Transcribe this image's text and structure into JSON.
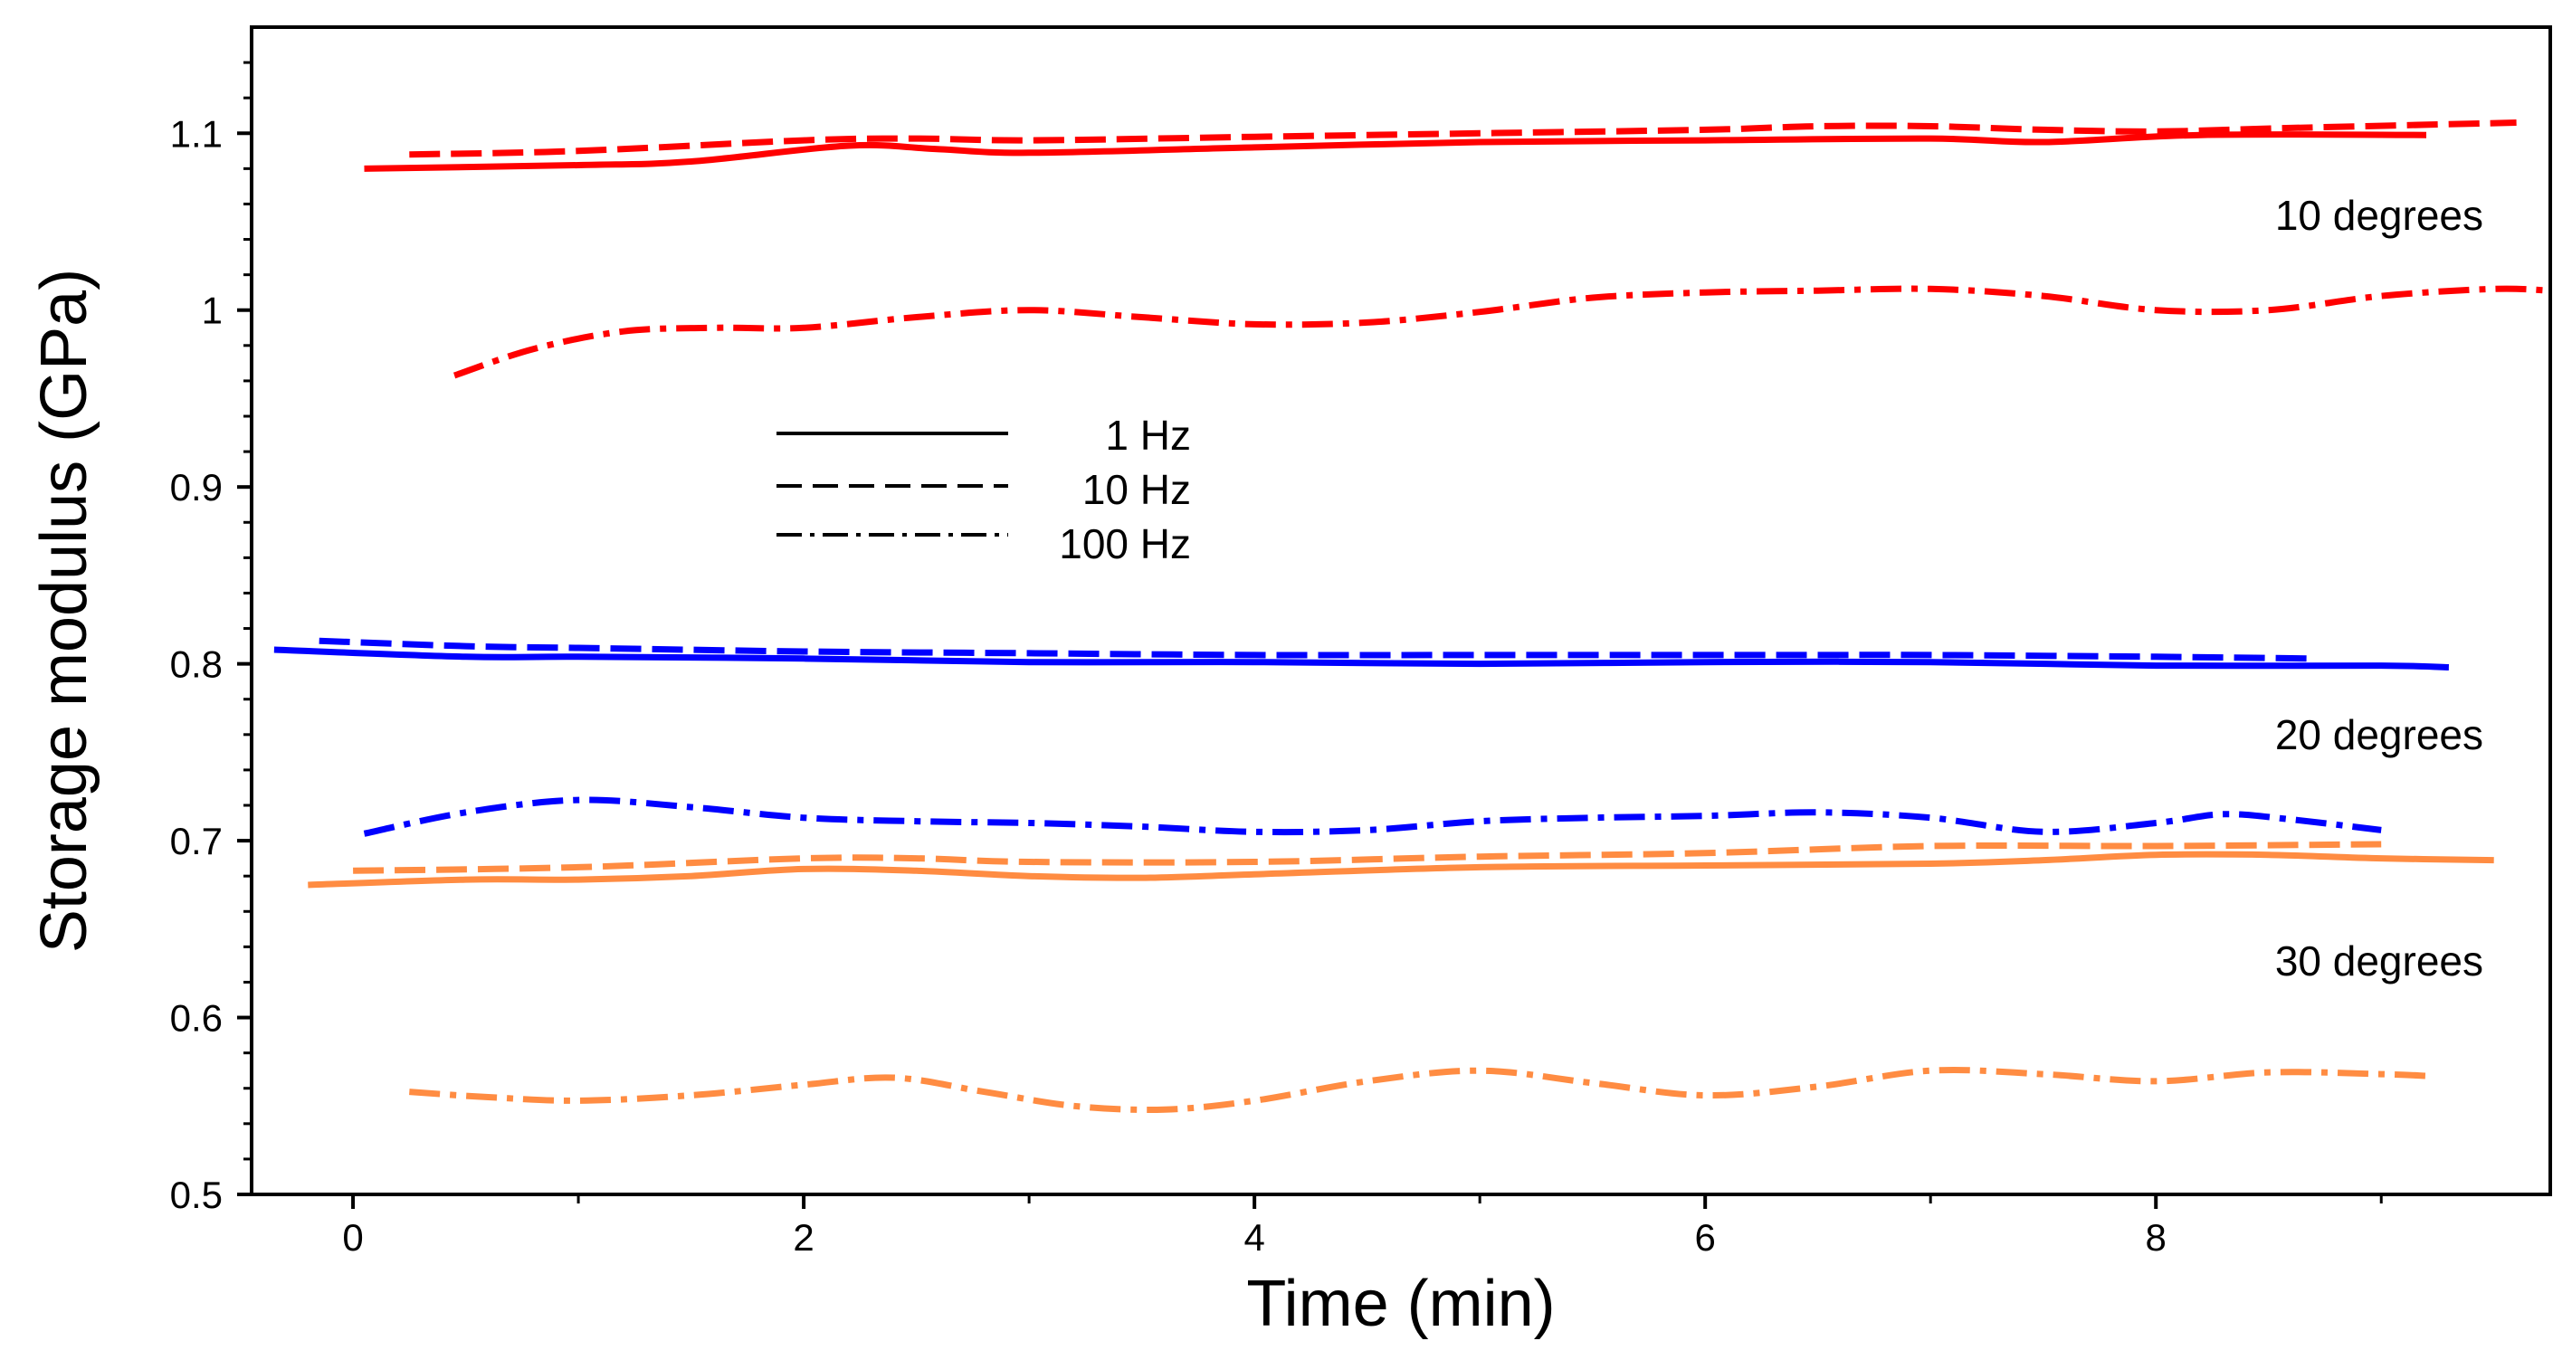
{
  "chart_data": {
    "type": "line",
    "title": "",
    "xlabel": "Time (min)",
    "ylabel": "Storage modulus  (GPa)",
    "xlim": [
      -0.45,
      9.75
    ],
    "ylim": [
      0.5,
      1.16
    ],
    "x_ticks": [
      0,
      2,
      4,
      6,
      8
    ],
    "x_tick_labels": [
      "0",
      "2",
      "4",
      "6",
      "8"
    ],
    "y_ticks": [
      0.5,
      0.6,
      0.7,
      0.8,
      0.9,
      1.0,
      1.1
    ],
    "y_tick_labels": [
      "0.5",
      "0.6",
      "0.7",
      "0.8",
      "0.9",
      "1",
      "1.1"
    ],
    "legend": {
      "placement": "upper-left-center",
      "entries": [
        {
          "label": "1 Hz",
          "style": "solid"
        },
        {
          "label": "10 Hz",
          "style": "dashed"
        },
        {
          "label": "100 Hz",
          "style": "dashdot"
        }
      ]
    },
    "annotations": [
      {
        "text": "10  degrees",
        "x": 9.2,
        "y": 1.055
      },
      {
        "text": "20 degrees",
        "x": 9.2,
        "y": 0.758
      },
      {
        "text": "30  degrees",
        "x": 9.2,
        "y": 0.63
      }
    ],
    "colors": {
      "10 degrees": "#ff0000",
      "20 degrees": "#0000ff",
      "30 degrees": "#ff8c42"
    },
    "series": [
      {
        "name": "10 degrees 1 Hz",
        "group": "10 degrees",
        "style": "solid",
        "x": [
          0.05,
          1.0,
          1.5,
          2.2,
          2.6,
          3.0,
          4.0,
          5.0,
          6.0,
          7.0,
          7.5,
          8.2,
          9.2
        ],
        "y": [
          1.08,
          1.082,
          1.084,
          1.093,
          1.091,
          1.089,
          1.092,
          1.095,
          1.096,
          1.097,
          1.095,
          1.099,
          1.099
        ]
      },
      {
        "name": "10 degrees 10 Hz",
        "group": "10 degrees",
        "style": "dashed",
        "x": [
          0.25,
          1.0,
          2.0,
          2.5,
          3.0,
          4.0,
          5.0,
          6.0,
          6.5,
          7.0,
          7.5,
          8.0,
          8.6,
          9.6
        ],
        "y": [
          1.088,
          1.09,
          1.096,
          1.097,
          1.096,
          1.098,
          1.1,
          1.102,
          1.104,
          1.104,
          1.102,
          1.101,
          1.103,
          1.106
        ]
      },
      {
        "name": "10 degrees 100 Hz",
        "group": "10 degrees",
        "style": "dashdot",
        "x": [
          0.45,
          0.8,
          1.2,
          1.6,
          2.0,
          2.5,
          3.0,
          3.5,
          4.0,
          4.5,
          5.0,
          5.5,
          6.0,
          6.5,
          7.0,
          7.5,
          8.0,
          8.5,
          9.0,
          9.5,
          9.75
        ],
        "y": [
          0.963,
          0.978,
          0.988,
          0.99,
          0.99,
          0.996,
          1.0,
          0.996,
          0.992,
          0.993,
          0.999,
          1.007,
          1.01,
          1.011,
          1.012,
          1.008,
          1.0,
          1.0,
          1.008,
          1.012,
          1.011
        ]
      },
      {
        "name": "20 degrees 1 Hz",
        "group": "20 degrees",
        "style": "solid",
        "x": [
          -0.35,
          0.5,
          1.0,
          2.0,
          3.0,
          4.0,
          5.0,
          6.0,
          7.0,
          8.0,
          9.0,
          9.3
        ],
        "y": [
          0.808,
          0.804,
          0.804,
          0.803,
          0.801,
          0.801,
          0.8,
          0.801,
          0.801,
          0.799,
          0.799,
          0.798
        ]
      },
      {
        "name": "20 degrees 10 Hz",
        "group": "20 degrees",
        "style": "dashed",
        "x": [
          -0.15,
          0.5,
          1.0,
          2.0,
          3.0,
          4.0,
          5.0,
          6.0,
          6.5,
          7.0,
          8.0,
          8.7
        ],
        "y": [
          0.813,
          0.81,
          0.809,
          0.807,
          0.806,
          0.805,
          0.805,
          0.805,
          0.805,
          0.805,
          0.804,
          0.803
        ]
      },
      {
        "name": "20 degrees 100 Hz",
        "group": "20 degrees",
        "style": "dashdot",
        "x": [
          0.05,
          0.5,
          1.0,
          1.5,
          2.0,
          2.5,
          3.0,
          3.5,
          4.0,
          4.5,
          5.0,
          5.5,
          6.0,
          6.5,
          7.0,
          7.5,
          8.0,
          8.3,
          8.6,
          9.0
        ],
        "y": [
          0.704,
          0.716,
          0.723,
          0.719,
          0.713,
          0.711,
          0.71,
          0.708,
          0.705,
          0.706,
          0.711,
          0.713,
          0.714,
          0.716,
          0.713,
          0.705,
          0.71,
          0.715,
          0.712,
          0.706
        ]
      },
      {
        "name": "30 degrees 1 Hz",
        "group": "30 degrees",
        "style": "solid",
        "x": [
          -0.2,
          0.5,
          1.0,
          1.5,
          2.0,
          2.5,
          3.0,
          3.5,
          4.0,
          5.0,
          6.0,
          7.0,
          7.5,
          8.0,
          8.5,
          9.0,
          9.5
        ],
        "y": [
          0.675,
          0.678,
          0.678,
          0.68,
          0.684,
          0.683,
          0.68,
          0.679,
          0.681,
          0.685,
          0.686,
          0.687,
          0.689,
          0.692,
          0.692,
          0.69,
          0.689
        ]
      },
      {
        "name": "30 degrees 10 Hz",
        "group": "30 degrees",
        "style": "dashed",
        "x": [
          0.0,
          1.0,
          2.0,
          2.5,
          3.0,
          4.0,
          5.0,
          6.0,
          7.0,
          8.0,
          9.0
        ],
        "y": [
          0.683,
          0.685,
          0.69,
          0.69,
          0.688,
          0.688,
          0.691,
          0.693,
          0.697,
          0.697,
          0.698
        ]
      },
      {
        "name": "30 degrees 100 Hz",
        "group": "30 degrees",
        "style": "dashdot",
        "x": [
          0.25,
          0.6,
          1.0,
          1.5,
          2.0,
          2.4,
          2.8,
          3.2,
          3.6,
          4.0,
          4.5,
          5.0,
          5.5,
          6.0,
          6.5,
          7.0,
          7.5,
          8.0,
          8.5,
          9.0,
          9.2
        ],
        "y": [
          0.558,
          0.555,
          0.553,
          0.556,
          0.562,
          0.566,
          0.558,
          0.55,
          0.548,
          0.553,
          0.564,
          0.57,
          0.563,
          0.556,
          0.561,
          0.57,
          0.568,
          0.564,
          0.569,
          0.568,
          0.567
        ]
      }
    ]
  }
}
